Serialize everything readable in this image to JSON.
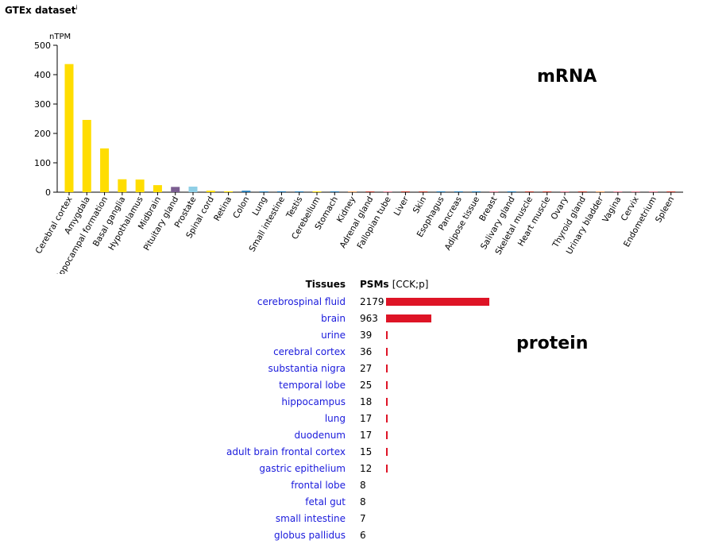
{
  "header": {
    "title": "GTEx dataset",
    "info_marker": "i"
  },
  "labels": {
    "mrna": "mRNA",
    "protein": "protein"
  },
  "chart_data": [
    {
      "type": "bar",
      "ylabel": "nTPM",
      "ylim": [
        0,
        500
      ],
      "yticks": [
        0,
        100,
        200,
        300,
        400,
        500
      ],
      "grid": false,
      "categories": [
        "Cerebral cortex",
        "Amygdala",
        "Hippocampal formation",
        "Basal ganglia",
        "Hypothalamus",
        "Midbrain",
        "Pituitary gland",
        "Prostate",
        "Spinal cord",
        "Retina",
        "Colon",
        "Lung",
        "Small intestine",
        "Testis",
        "Cerebellum",
        "Stomach",
        "Kidney",
        "Adrenal gland",
        "Fallopian tube",
        "Liver",
        "Skin",
        "Esophagus",
        "Pancreas",
        "Adipose tissue",
        "Breast",
        "Salivary gland",
        "Skeletal muscle",
        "Heart muscle",
        "Ovary",
        "Thyroid gland",
        "Urinary bladder",
        "Vagina",
        "Cervix",
        "Endometrium",
        "Spleen"
      ],
      "values": [
        436,
        246,
        149,
        44,
        43,
        24,
        18,
        19,
        5,
        3,
        5,
        2,
        3,
        2,
        1,
        2,
        1,
        1,
        0.5,
        0.5,
        0.5,
        0.5,
        0.5,
        0.5,
        0.5,
        0.5,
        0.5,
        0.5,
        0.5,
        0.5,
        0.5,
        0.5,
        0.5,
        0.5,
        0.5
      ],
      "colors": [
        "#ffdd00",
        "#ffdd00",
        "#ffdd00",
        "#ffdd00",
        "#ffdd00",
        "#ffdd00",
        "#7b5e91",
        "#8fcfe6",
        "#ffdd00",
        "#ffdd00",
        "#1f78b4",
        "#1f78b4",
        "#1f78b4",
        "#1f78b4",
        "#ffdd00",
        "#1f78b4",
        "#f4a460",
        "#c0392b",
        "#e07a8f",
        "#c0392b",
        "#c0392b",
        "#1f78b4",
        "#1f78b4",
        "#1f78b4",
        "#e07a8f",
        "#1f78b4",
        "#c0392b",
        "#c0392b",
        "#e07a8f",
        "#c0392b",
        "#f4a460",
        "#e07a8f",
        "#e07a8f",
        "#e07a8f",
        "#c0392b"
      ]
    },
    {
      "type": "table",
      "columns": {
        "tissue": "Tissues",
        "psm": "PSMs",
        "psm_unit": "[CCK;p]"
      },
      "max_psm": 2179,
      "rows": [
        {
          "tissue": "cerebrospinal fluid",
          "psm": "2179"
        },
        {
          "tissue": "brain",
          "psm": "963"
        },
        {
          "tissue": "urine",
          "psm": "39"
        },
        {
          "tissue": "cerebral cortex",
          "psm": "36"
        },
        {
          "tissue": "substantia nigra",
          "psm": "27"
        },
        {
          "tissue": "temporal lobe",
          "psm": "25"
        },
        {
          "tissue": "hippocampus",
          "psm": "18"
        },
        {
          "tissue": "lung",
          "psm": "17"
        },
        {
          "tissue": "duodenum",
          "psm": "17"
        },
        {
          "tissue": "adult brain frontal cortex",
          "psm": "15"
        },
        {
          "tissue": "gastric epithelium",
          "psm": "12"
        },
        {
          "tissue": "frontal lobe",
          "psm": "8"
        },
        {
          "tissue": "fetal gut",
          "psm": "8"
        },
        {
          "tissue": "small intestine",
          "psm": "7"
        },
        {
          "tissue": "globus pallidus",
          "psm": "6"
        }
      ],
      "bar_color": "#de1426",
      "link_color": "#1a1adc"
    }
  ]
}
